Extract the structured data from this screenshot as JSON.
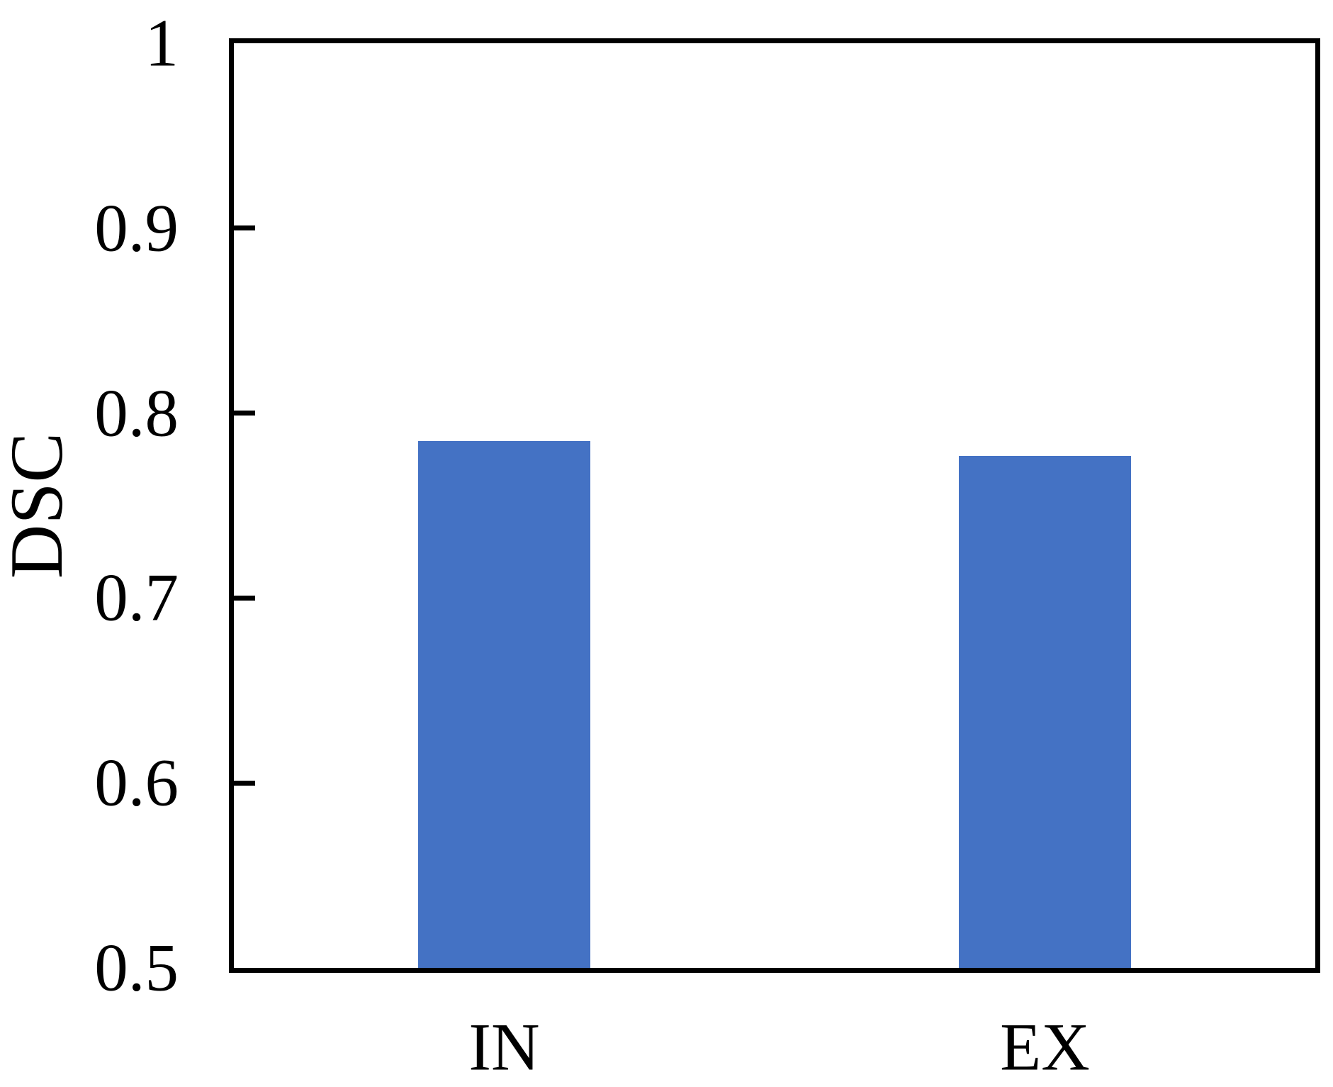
{
  "figure": {
    "background": "#ffffff"
  },
  "chart_data": {
    "type": "bar",
    "title": "",
    "xlabel": "",
    "ylabel": "DSC",
    "categories": [
      "IN",
      "EX"
    ],
    "values": [
      0.785,
      0.777
    ],
    "ylim": [
      0.5,
      1.0
    ],
    "y_ticks": [
      {
        "value": 1.0,
        "label": "1"
      },
      {
        "value": 0.9,
        "label": "0.9"
      },
      {
        "value": 0.8,
        "label": "0.8"
      },
      {
        "value": 0.7,
        "label": "0.7"
      },
      {
        "value": 0.6,
        "label": "0.6"
      },
      {
        "value": 0.5,
        "label": "0.5"
      }
    ],
    "grid": false,
    "legend": false,
    "bar_color": "#4472C4",
    "axis_color": "#000000",
    "tick_direction": "in"
  }
}
